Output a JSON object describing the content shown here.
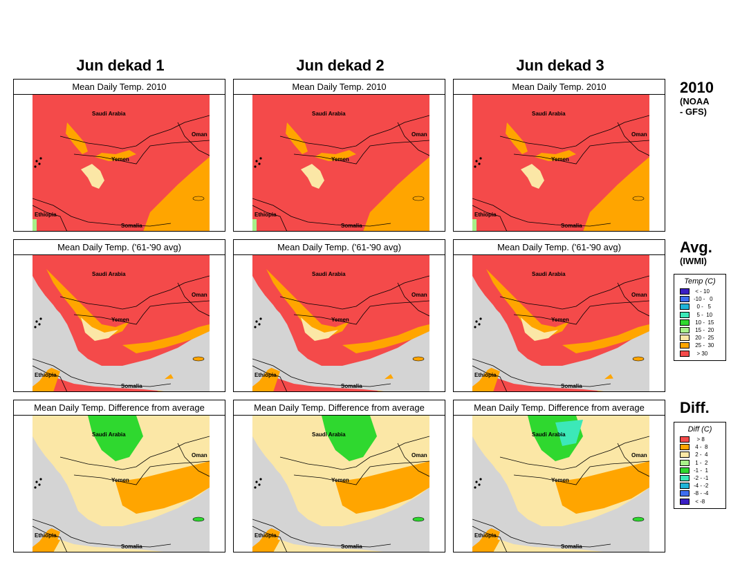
{
  "columns": [
    {
      "title": "Jun dekad 1"
    },
    {
      "title": "Jun dekad 2"
    },
    {
      "title": "Jun dekad 3"
    }
  ],
  "rows": [
    {
      "panel_title": "Mean Daily Temp. 2010",
      "label": "2010",
      "sublabel_lines": [
        "(NOAA",
        "- GFS)"
      ],
      "kind": "current"
    },
    {
      "panel_title": "Mean Daily Temp. ('61-'90 avg)",
      "label": "Avg.",
      "sublabel_lines": [
        "(IWMI)"
      ],
      "kind": "average"
    },
    {
      "panel_title": "Mean Daily Temp. Difference from average",
      "label": "Diff.",
      "sublabel_lines": [],
      "kind": "difference"
    }
  ],
  "place_names": {
    "saudi": "Saudi Arabia",
    "oman": "Oman",
    "yemen": "Yemen",
    "ethiopia": "Ethiopia",
    "somalia": "Somalia"
  },
  "legends": {
    "temp": {
      "title": "Temp (C)",
      "items": [
        {
          "label": " < - 10",
          "color": "#3a1fc4"
        },
        {
          "label": "-10 -   0",
          "color": "#3e6ef0"
        },
        {
          "label": "  0 -   5",
          "color": "#1fb4d8"
        },
        {
          "label": "  5 -  10",
          "color": "#3ce8b8"
        },
        {
          "label": " 10 -  15",
          "color": "#2fd82f"
        },
        {
          "label": " 15 -  20",
          "color": "#a8f08a"
        },
        {
          "label": " 20 -  25",
          "color": "#fbe7a6"
        },
        {
          "label": " 25 -  30",
          "color": "#ffa500"
        },
        {
          "label": "  > 30",
          "color": "#f44a4a"
        }
      ]
    },
    "diff": {
      "title": "Diff (C)",
      "items": [
        {
          "label": "  > 8",
          "color": "#f44a4a"
        },
        {
          "label": " 4 -  8",
          "color": "#ffa500"
        },
        {
          "label": " 2 -  4",
          "color": "#fbe7a6"
        },
        {
          "label": " 1 -  2",
          "color": "#a8f08a"
        },
        {
          "label": "-1 -  1",
          "color": "#2fd82f"
        },
        {
          "label": "-2 - -1",
          "color": "#3ce8b8"
        },
        {
          "label": "-4 - -2",
          "color": "#1fb4d8"
        },
        {
          "label": "-8 - -4",
          "color": "#3e6ef0"
        },
        {
          "label": " < -8",
          "color": "#3a1fc4"
        }
      ]
    }
  },
  "colors": {
    "hot": "#f44a4a",
    "warm": "#ffa500",
    "mild": "#fbe7a6",
    "sea": "#d4d4d4",
    "green": "#2fd82f",
    "lightgreen": "#a8f08a",
    "cyan": "#3ce8b8"
  }
}
